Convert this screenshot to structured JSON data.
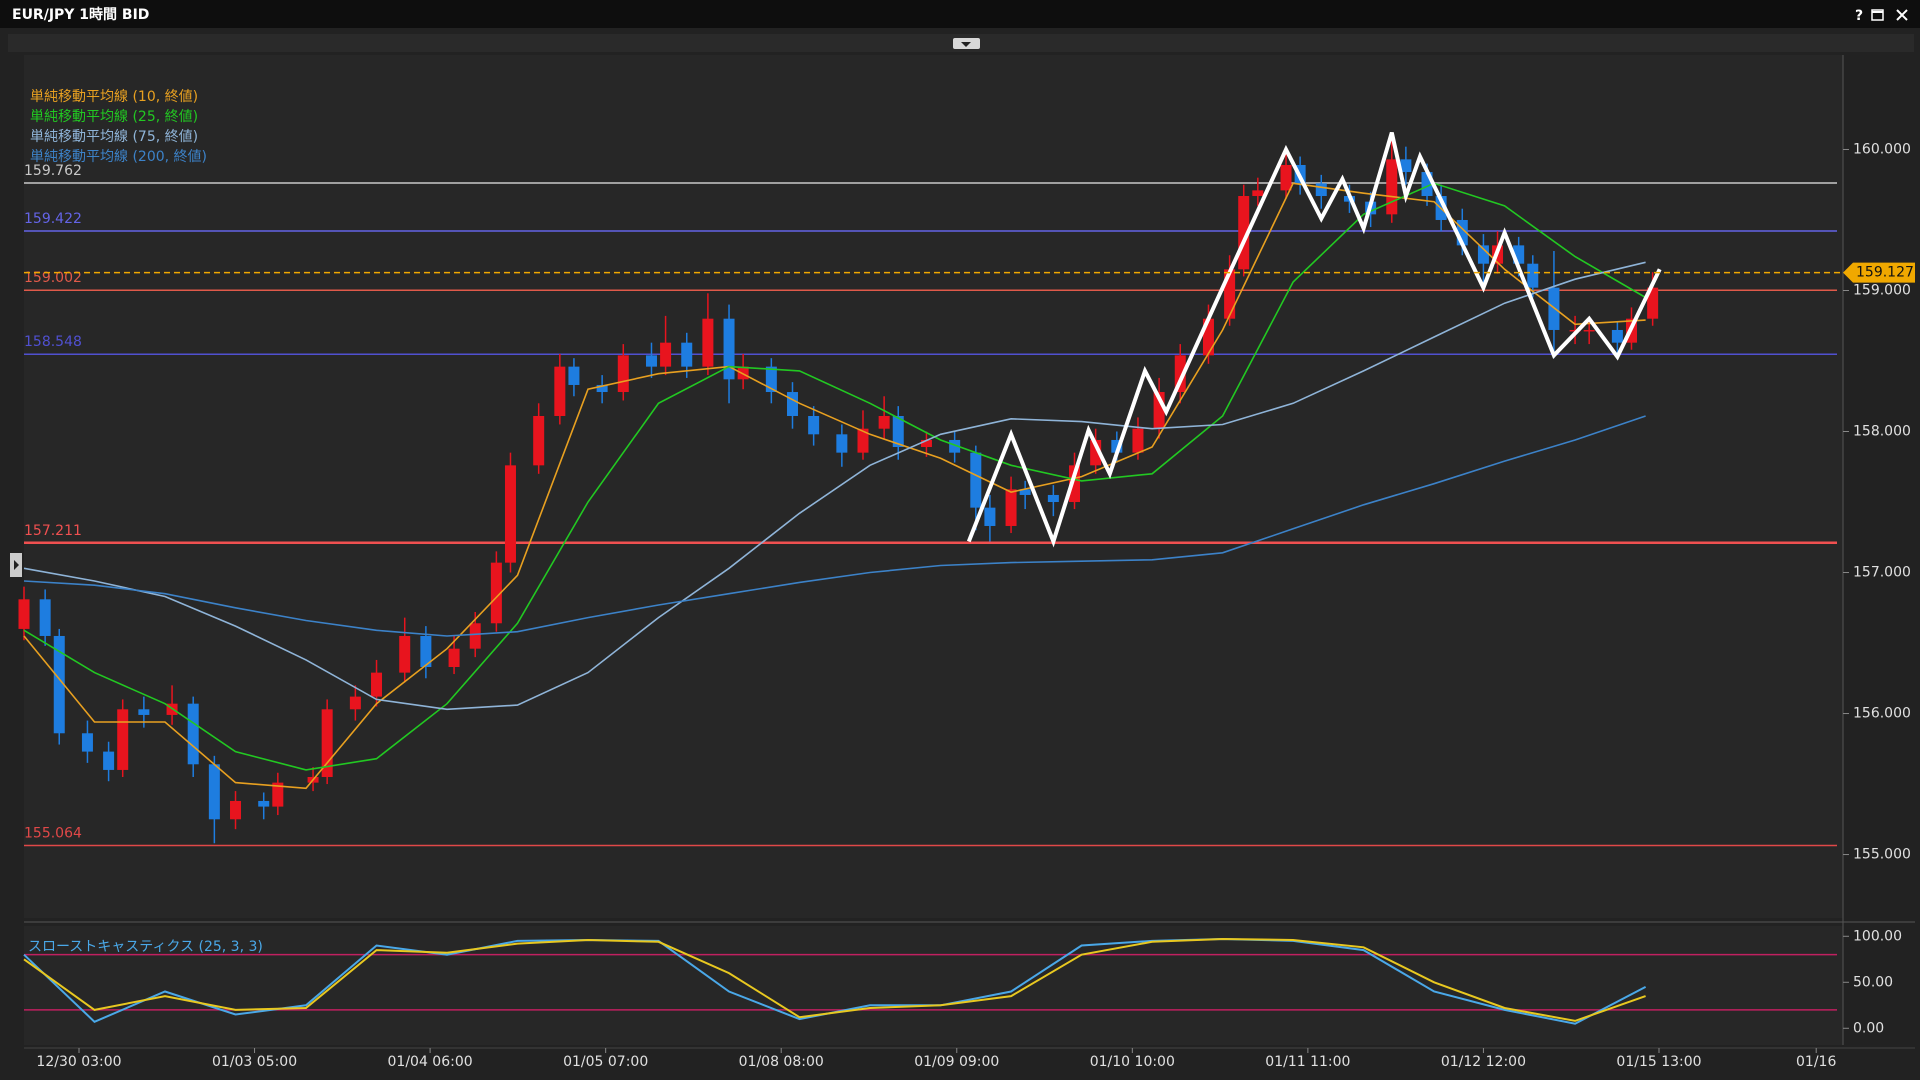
{
  "chart_data": [
    {
      "type": "candlestick",
      "title": "EUR/JPY 1時間 BID",
      "help": "?",
      "x": [
        0,
        3,
        5,
        9,
        12,
        14,
        17,
        21,
        24,
        27,
        30,
        34,
        36,
        41,
        43,
        47,
        50,
        54,
        57,
        61,
        64,
        67,
        69,
        73,
        76,
        78,
        82,
        85,
        89,
        91,
        94,
        97,
        100,
        102,
        106,
        109,
        112,
        116,
        119,
        122,
        124,
        128,
        132,
        135,
        137,
        140,
        142,
        146,
        149,
        152,
        155,
        158,
        161,
        164,
        168,
        171,
        173,
        175,
        179,
        181,
        184,
        188,
        191,
        194,
        196,
        199,
        201,
        204,
        207,
        209,
        212,
        214,
        217,
        220,
        222,
        226,
        228,
        231
      ],
      "open": [
        156.6,
        156.81,
        156.55,
        155.86,
        155.73,
        155.6,
        156.03,
        155.99,
        156.07,
        155.64,
        155.25,
        155.38,
        155.34,
        155.51,
        155.55,
        156.03,
        156.12,
        156.29,
        156.55,
        156.33,
        156.46,
        156.64,
        157.07,
        157.76,
        158.11,
        158.46,
        158.33,
        158.28,
        158.54,
        158.46,
        158.63,
        158.46,
        158.8,
        158.37,
        158.46,
        158.28,
        158.11,
        157.98,
        157.85,
        158.02,
        158.11,
        157.89,
        157.94,
        157.85,
        157.46,
        157.33,
        157.59,
        157.55,
        157.5,
        157.76,
        157.94,
        157.85,
        158.02,
        158.28,
        158.54,
        158.8,
        159.15,
        159.67,
        159.71,
        159.89,
        159.76,
        159.67,
        159.63,
        159.54,
        159.93,
        159.84,
        159.67,
        159.5,
        159.32,
        159.19,
        159.32,
        159.19,
        159.02,
        158.72,
        158.72,
        158.72,
        158.63,
        158.8
      ],
      "high": [
        156.9,
        156.88,
        156.6,
        155.95,
        155.8,
        156.1,
        156.12,
        156.2,
        156.12,
        155.7,
        155.45,
        155.44,
        155.58,
        155.62,
        156.1,
        156.2,
        156.38,
        156.68,
        156.62,
        156.55,
        156.72,
        157.15,
        157.85,
        158.2,
        158.55,
        158.52,
        158.4,
        158.62,
        158.63,
        158.82,
        158.7,
        158.98,
        158.9,
        158.55,
        158.52,
        158.35,
        158.18,
        158.05,
        158.15,
        158.25,
        158.18,
        158.0,
        158.0,
        157.9,
        157.55,
        157.68,
        157.65,
        157.62,
        157.85,
        158.02,
        158.0,
        158.1,
        158.38,
        158.62,
        158.9,
        159.25,
        159.75,
        159.8,
        160.0,
        159.95,
        159.82,
        159.75,
        159.7,
        160.12,
        160.02,
        159.9,
        159.75,
        159.58,
        159.4,
        159.42,
        159.38,
        159.25,
        159.28,
        158.82,
        158.8,
        158.78,
        158.88,
        159.13
      ],
      "low": [
        156.52,
        156.48,
        155.78,
        155.65,
        155.52,
        155.55,
        155.9,
        155.92,
        155.55,
        155.08,
        155.18,
        155.25,
        155.28,
        155.45,
        155.5,
        155.95,
        156.05,
        156.22,
        156.25,
        156.28,
        156.4,
        156.58,
        157.0,
        157.7,
        158.05,
        158.25,
        158.2,
        158.22,
        158.38,
        158.4,
        158.38,
        158.4,
        158.2,
        158.3,
        158.2,
        158.02,
        157.9,
        157.75,
        157.8,
        157.95,
        157.8,
        157.82,
        157.78,
        157.3,
        157.22,
        157.28,
        157.45,
        157.4,
        157.45,
        157.7,
        157.78,
        157.8,
        157.95,
        158.2,
        158.48,
        158.75,
        159.1,
        159.6,
        159.65,
        159.68,
        159.58,
        159.55,
        159.45,
        159.48,
        159.75,
        159.6,
        159.42,
        159.25,
        159.05,
        159.12,
        159.1,
        158.95,
        158.52,
        158.62,
        158.62,
        158.55,
        158.58,
        158.75
      ],
      "close": [
        156.81,
        156.55,
        155.86,
        155.73,
        155.6,
        156.03,
        155.99,
        156.07,
        155.64,
        155.25,
        155.38,
        155.34,
        155.51,
        155.55,
        156.03,
        156.12,
        156.29,
        156.55,
        156.33,
        156.46,
        156.64,
        157.07,
        157.76,
        158.11,
        158.46,
        158.33,
        158.28,
        158.54,
        158.46,
        158.63,
        158.46,
        158.8,
        158.37,
        158.46,
        158.28,
        158.11,
        157.98,
        157.85,
        158.02,
        158.11,
        157.89,
        157.94,
        157.85,
        157.46,
        157.33,
        157.59,
        157.55,
        157.5,
        157.76,
        157.94,
        157.85,
        158.02,
        158.28,
        158.54,
        158.8,
        159.15,
        159.67,
        159.71,
        159.89,
        159.76,
        159.67,
        159.63,
        159.54,
        159.93,
        159.84,
        159.67,
        159.5,
        159.32,
        159.19,
        159.32,
        159.19,
        159.02,
        158.72,
        158.72,
        158.72,
        158.63,
        158.8,
        159.02
      ],
      "up_color": "#e8141e",
      "down_color": "#1e7de0",
      "series": [
        {
          "name": "単純移動平均線 (10, 終値)",
          "color": "#e8a020",
          "x": [
            0,
            10,
            20,
            30,
            40,
            50,
            60,
            70,
            80,
            90,
            100,
            110,
            120,
            130,
            140,
            150,
            160,
            170,
            180,
            190,
            200,
            210,
            220,
            230
          ],
          "values": [
            156.55,
            155.94,
            155.94,
            155.51,
            155.47,
            156.07,
            156.46,
            156.98,
            158.3,
            158.41,
            158.46,
            158.2,
            157.98,
            157.81,
            157.57,
            157.68,
            157.89,
            158.72,
            159.76,
            159.69,
            159.63,
            159.15,
            158.76,
            158.79
          ]
        },
        {
          "name": "単純移動平均線 (25, 終値)",
          "color": "#22c822",
          "x": [
            0,
            10,
            20,
            30,
            40,
            50,
            60,
            70,
            80,
            90,
            100,
            110,
            120,
            130,
            140,
            150,
            160,
            170,
            180,
            190,
            200,
            210,
            220,
            230
          ],
          "values": [
            156.59,
            156.29,
            156.07,
            155.73,
            155.6,
            155.68,
            156.07,
            156.64,
            157.5,
            158.2,
            158.46,
            158.43,
            158.2,
            157.94,
            157.76,
            157.65,
            157.7,
            158.11,
            159.06,
            159.54,
            159.76,
            159.6,
            159.24,
            158.95
          ]
        },
        {
          "name": "単純移動平均線 (75, 終値)",
          "color": "#8fb4d8",
          "x": [
            0,
            10,
            20,
            30,
            40,
            50,
            60,
            70,
            80,
            90,
            100,
            110,
            120,
            130,
            140,
            150,
            160,
            170,
            180,
            190,
            200,
            210,
            220,
            230
          ],
          "values": [
            157.03,
            156.94,
            156.83,
            156.62,
            156.38,
            156.1,
            156.03,
            156.06,
            156.29,
            156.68,
            157.03,
            157.42,
            157.76,
            157.98,
            158.09,
            158.07,
            158.02,
            158.05,
            158.2,
            158.43,
            158.67,
            158.91,
            159.08,
            159.2
          ]
        },
        {
          "name": "単純移動平均線 (200, 終値)",
          "color": "#3c82c8",
          "x": [
            0,
            10,
            20,
            30,
            40,
            50,
            60,
            70,
            80,
            90,
            100,
            110,
            120,
            130,
            140,
            150,
            160,
            170,
            180,
            190,
            200,
            210,
            220,
            230
          ],
          "values": [
            156.94,
            156.91,
            156.85,
            156.75,
            156.66,
            156.59,
            156.55,
            156.58,
            156.68,
            156.77,
            156.85,
            156.93,
            157.0,
            157.05,
            157.07,
            157.08,
            157.09,
            157.14,
            157.31,
            157.48,
            157.63,
            157.79,
            157.94,
            158.11
          ]
        }
      ],
      "levels": [
        {
          "value": 159.762,
          "color": "#c8c8c8"
        },
        {
          "value": 159.422,
          "color": "#6464e6"
        },
        {
          "value": 159.002,
          "color": "#e05a4a"
        },
        {
          "value": 158.548,
          "color": "#5050d0"
        },
        {
          "value": 157.211,
          "color": "#f05050"
        },
        {
          "value": 155.064,
          "color": "#e04848"
        }
      ],
      "last_price": {
        "value": 159.127,
        "color": "#f0a800"
      },
      "zigzag": {
        "color": "#ffffff",
        "x": [
          134,
          140,
          146,
          151,
          154,
          159,
          162,
          170,
          179,
          184,
          187,
          190,
          194,
          196,
          198,
          207,
          210,
          217,
          222,
          226,
          232
        ],
        "values": [
          157.22,
          157.98,
          157.22,
          158.01,
          157.7,
          158.43,
          158.14,
          159.02,
          160.0,
          159.51,
          159.79,
          159.44,
          160.12,
          159.67,
          159.95,
          159.02,
          159.41,
          158.54,
          158.8,
          158.53,
          159.15
        ]
      },
      "xlim": [
        0,
        258
      ],
      "ylim": [
        154.55,
        160.67
      ],
      "yticks": [
        {
          "value": 155,
          "label": "155.000"
        },
        {
          "value": 156,
          "label": "156.000"
        },
        {
          "value": 157,
          "label": "157.000"
        },
        {
          "value": 158,
          "label": "158.000"
        },
        {
          "value": 159,
          "label": "159.000"
        },
        {
          "value": 160,
          "label": "160.000"
        }
      ]
    },
    {
      "type": "line",
      "title": "スローストキャスティクス (25, 3, 3)",
      "series": [
        {
          "color": "#4aa8e8",
          "x": [
            0,
            10,
            20,
            30,
            40,
            50,
            60,
            70,
            80,
            90,
            100,
            110,
            120,
            130,
            140,
            150,
            160,
            170,
            180,
            190,
            200,
            210,
            220,
            230
          ],
          "values": [
            80,
            7,
            40,
            15,
            25,
            90,
            80,
            95,
            96,
            95,
            40,
            10,
            25,
            25,
            40,
            90,
            95,
            97,
            95,
            85,
            40,
            20,
            5,
            45
          ]
        },
        {
          "color": "#e8c820",
          "x": [
            0,
            10,
            20,
            30,
            40,
            50,
            60,
            70,
            80,
            90,
            100,
            110,
            120,
            130,
            140,
            150,
            160,
            170,
            180,
            190,
            200,
            210,
            220,
            230
          ],
          "values": [
            75,
            20,
            35,
            20,
            22,
            85,
            82,
            92,
            96,
            94,
            60,
            12,
            22,
            25,
            35,
            80,
            94,
            97,
            96,
            88,
            50,
            22,
            8,
            35
          ]
        }
      ],
      "levels": [
        {
          "value": 80,
          "color": "#c02060"
        },
        {
          "value": 20,
          "color": "#c02060"
        }
      ],
      "xlim": [
        0,
        258
      ],
      "ylim": [
        -16,
        109
      ],
      "yticks": [
        {
          "value": 0,
          "label": "0.00"
        },
        {
          "value": 50,
          "label": "50.00"
        },
        {
          "value": 100,
          "label": "100.00"
        }
      ],
      "xticks": [
        {
          "value": 7.8,
          "label": "12/30 03:00"
        },
        {
          "value": 32.7,
          "label": "01/03 05:00"
        },
        {
          "value": 57.6,
          "label": "01/04 06:00"
        },
        {
          "value": 82.5,
          "label": "01/05 07:00"
        },
        {
          "value": 107.4,
          "label": "01/08 08:00"
        },
        {
          "value": 132.3,
          "label": "01/09 09:00"
        },
        {
          "value": 157.2,
          "label": "01/10 10:00"
        },
        {
          "value": 182.1,
          "label": "01/11 11:00"
        },
        {
          "value": 207,
          "label": "01/12 12:00"
        },
        {
          "value": 231.9,
          "label": "01/15 13:00"
        },
        {
          "value": 254.2,
          "label": "01/16"
        }
      ]
    }
  ]
}
